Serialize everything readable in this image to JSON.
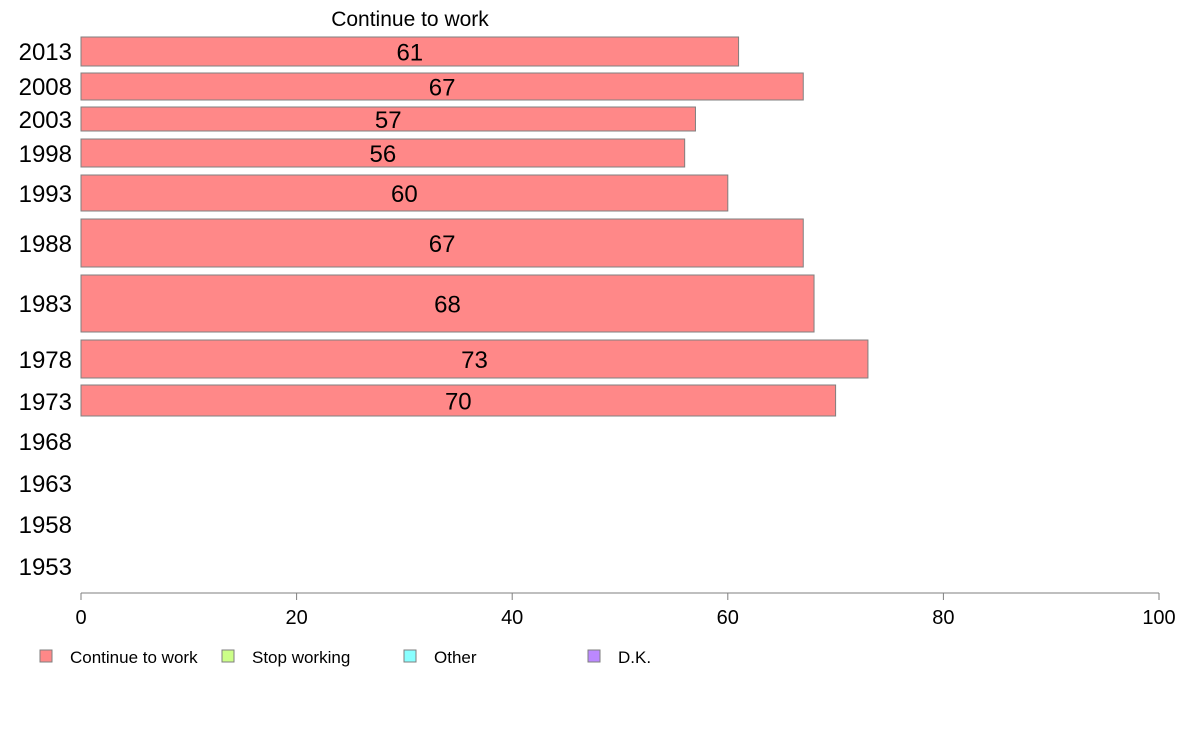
{
  "chart_data": {
    "type": "bar",
    "orientation": "horizontal",
    "title": "Continue to work",
    "categories": [
      "2013",
      "2008",
      "2003",
      "1998",
      "1993",
      "1988",
      "1983",
      "1978",
      "1973",
      "1968",
      "1963",
      "1958",
      "1953"
    ],
    "series": [
      {
        "name": "Continue to work",
        "values": [
          61,
          67,
          57,
          56,
          60,
          67,
          68,
          73,
          70,
          null,
          null,
          null,
          null
        ],
        "color": "#ff8888"
      }
    ],
    "xlim": [
      0,
      100
    ],
    "xticks": [
      "0",
      "20",
      "40",
      "60",
      "80",
      "100"
    ],
    "grid": false,
    "legend_position": "bottom",
    "legend": [
      {
        "label": "Continue to work",
        "color": "#ff8888"
      },
      {
        "label": "Stop working",
        "color": "#ccff88"
      },
      {
        "label": "Other",
        "color": "#88ffff"
      },
      {
        "label": "D.K.",
        "color": "#bb88ff"
      }
    ]
  }
}
